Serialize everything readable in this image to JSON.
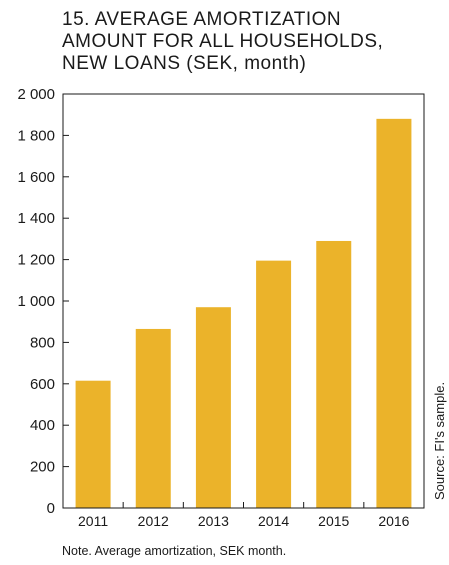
{
  "chart_data": {
    "type": "bar",
    "title_lines": [
      "15. AVERAGE AMORTIZATION",
      "AMOUNT FOR ALL HOUSEHOLDS,",
      "NEW LOANS (SEK, month)"
    ],
    "categories": [
      "2011",
      "2012",
      "2013",
      "2014",
      "2015",
      "2016"
    ],
    "values": [
      615,
      865,
      970,
      1195,
      1290,
      1880
    ],
    "ylim": [
      0,
      2000
    ],
    "yticks": [
      0,
      200,
      400,
      600,
      800,
      1000,
      1200,
      1400,
      1600,
      1800,
      2000
    ],
    "ytick_labels": [
      "0",
      "200",
      "400",
      "600",
      "800",
      "1 000",
      "1 200",
      "1 400",
      "1 600",
      "1 800",
      "2 000"
    ],
    "bar_color": "#ebb32a",
    "grid": false,
    "note": "Note. Average amortization, SEK month.",
    "source": "Source: FI's sample."
  }
}
